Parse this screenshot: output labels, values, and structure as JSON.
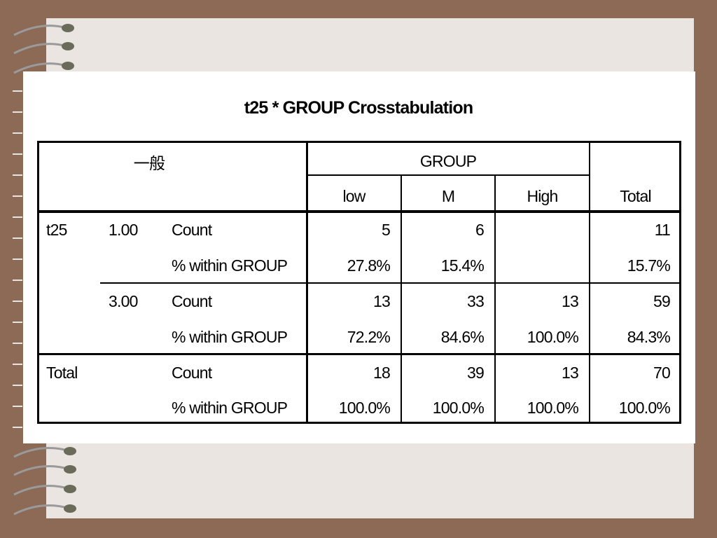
{
  "title": "t25 * GROUP Crosstabulation",
  "table": {
    "corner": "一般",
    "group_header": "GROUP",
    "columns": [
      "low",
      "M",
      "High",
      "Total"
    ],
    "rows": [
      {
        "var": "t25",
        "group": "1.00",
        "stat": "Count",
        "cells": [
          "5",
          "6",
          null,
          "11"
        ]
      },
      {
        "stat": "% within GROUP",
        "cells": [
          "27.8%",
          "15.4%",
          null,
          "15.7%"
        ]
      },
      {
        "group": "3.00",
        "stat": "Count",
        "cells": [
          "13",
          "33",
          "13",
          "59"
        ]
      },
      {
        "stat": "% within GROUP",
        "cells": [
          "72.2%",
          "84.6%",
          "100.0%",
          "84.3%"
        ]
      },
      {
        "var": "Total",
        "stat": "Count",
        "cells": [
          "18",
          "39",
          "13",
          "70"
        ]
      },
      {
        "stat": "% within GROUP",
        "cells": [
          "100.0%",
          "100.0%",
          "100.0%",
          "100.0%"
        ]
      }
    ]
  }
}
